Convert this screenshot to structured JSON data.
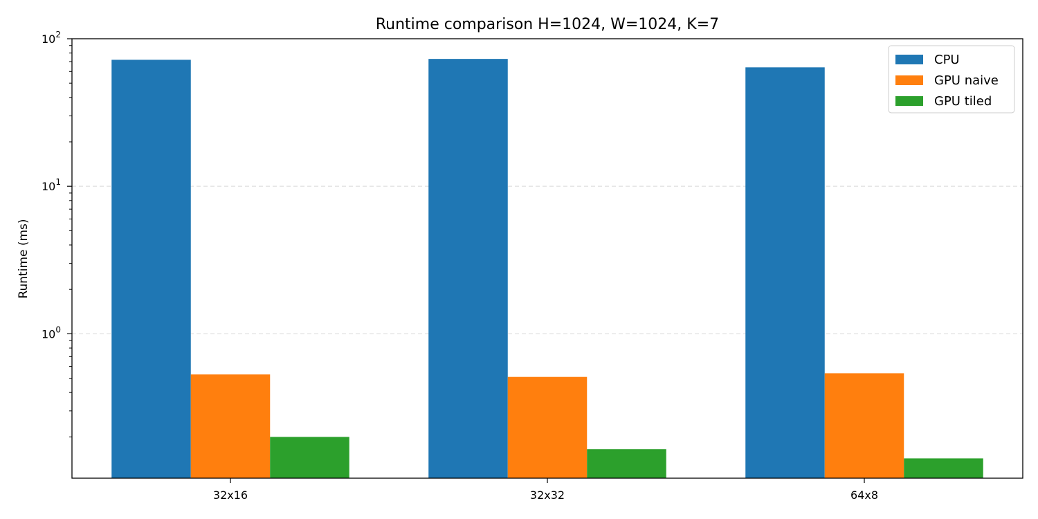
{
  "chart_data": {
    "type": "bar",
    "title": "Runtime comparison H=1024, W=1024, K=7",
    "xlabel": "",
    "ylabel": "Runtime (ms)",
    "yscale": "log",
    "ylim": [
      0.105,
      100
    ],
    "yticks": [
      {
        "value": 1,
        "base": "10",
        "exp": "0"
      },
      {
        "value": 10,
        "base": "10",
        "exp": "1"
      },
      {
        "value": 100,
        "base": "10",
        "exp": "2"
      }
    ],
    "grid": "y-major-dashed",
    "legend_position": "top-right",
    "categories": [
      "32x16",
      "32x32",
      "64x8"
    ],
    "series": [
      {
        "name": "CPU",
        "color": "#1f77b4",
        "values": [
          72,
          73,
          64
        ]
      },
      {
        "name": "GPU naive",
        "color": "#ff7f0e",
        "values": [
          0.53,
          0.51,
          0.54
        ]
      },
      {
        "name": "GPU tiled",
        "color": "#2ca02c",
        "values": [
          0.2,
          0.165,
          0.143
        ]
      }
    ]
  }
}
